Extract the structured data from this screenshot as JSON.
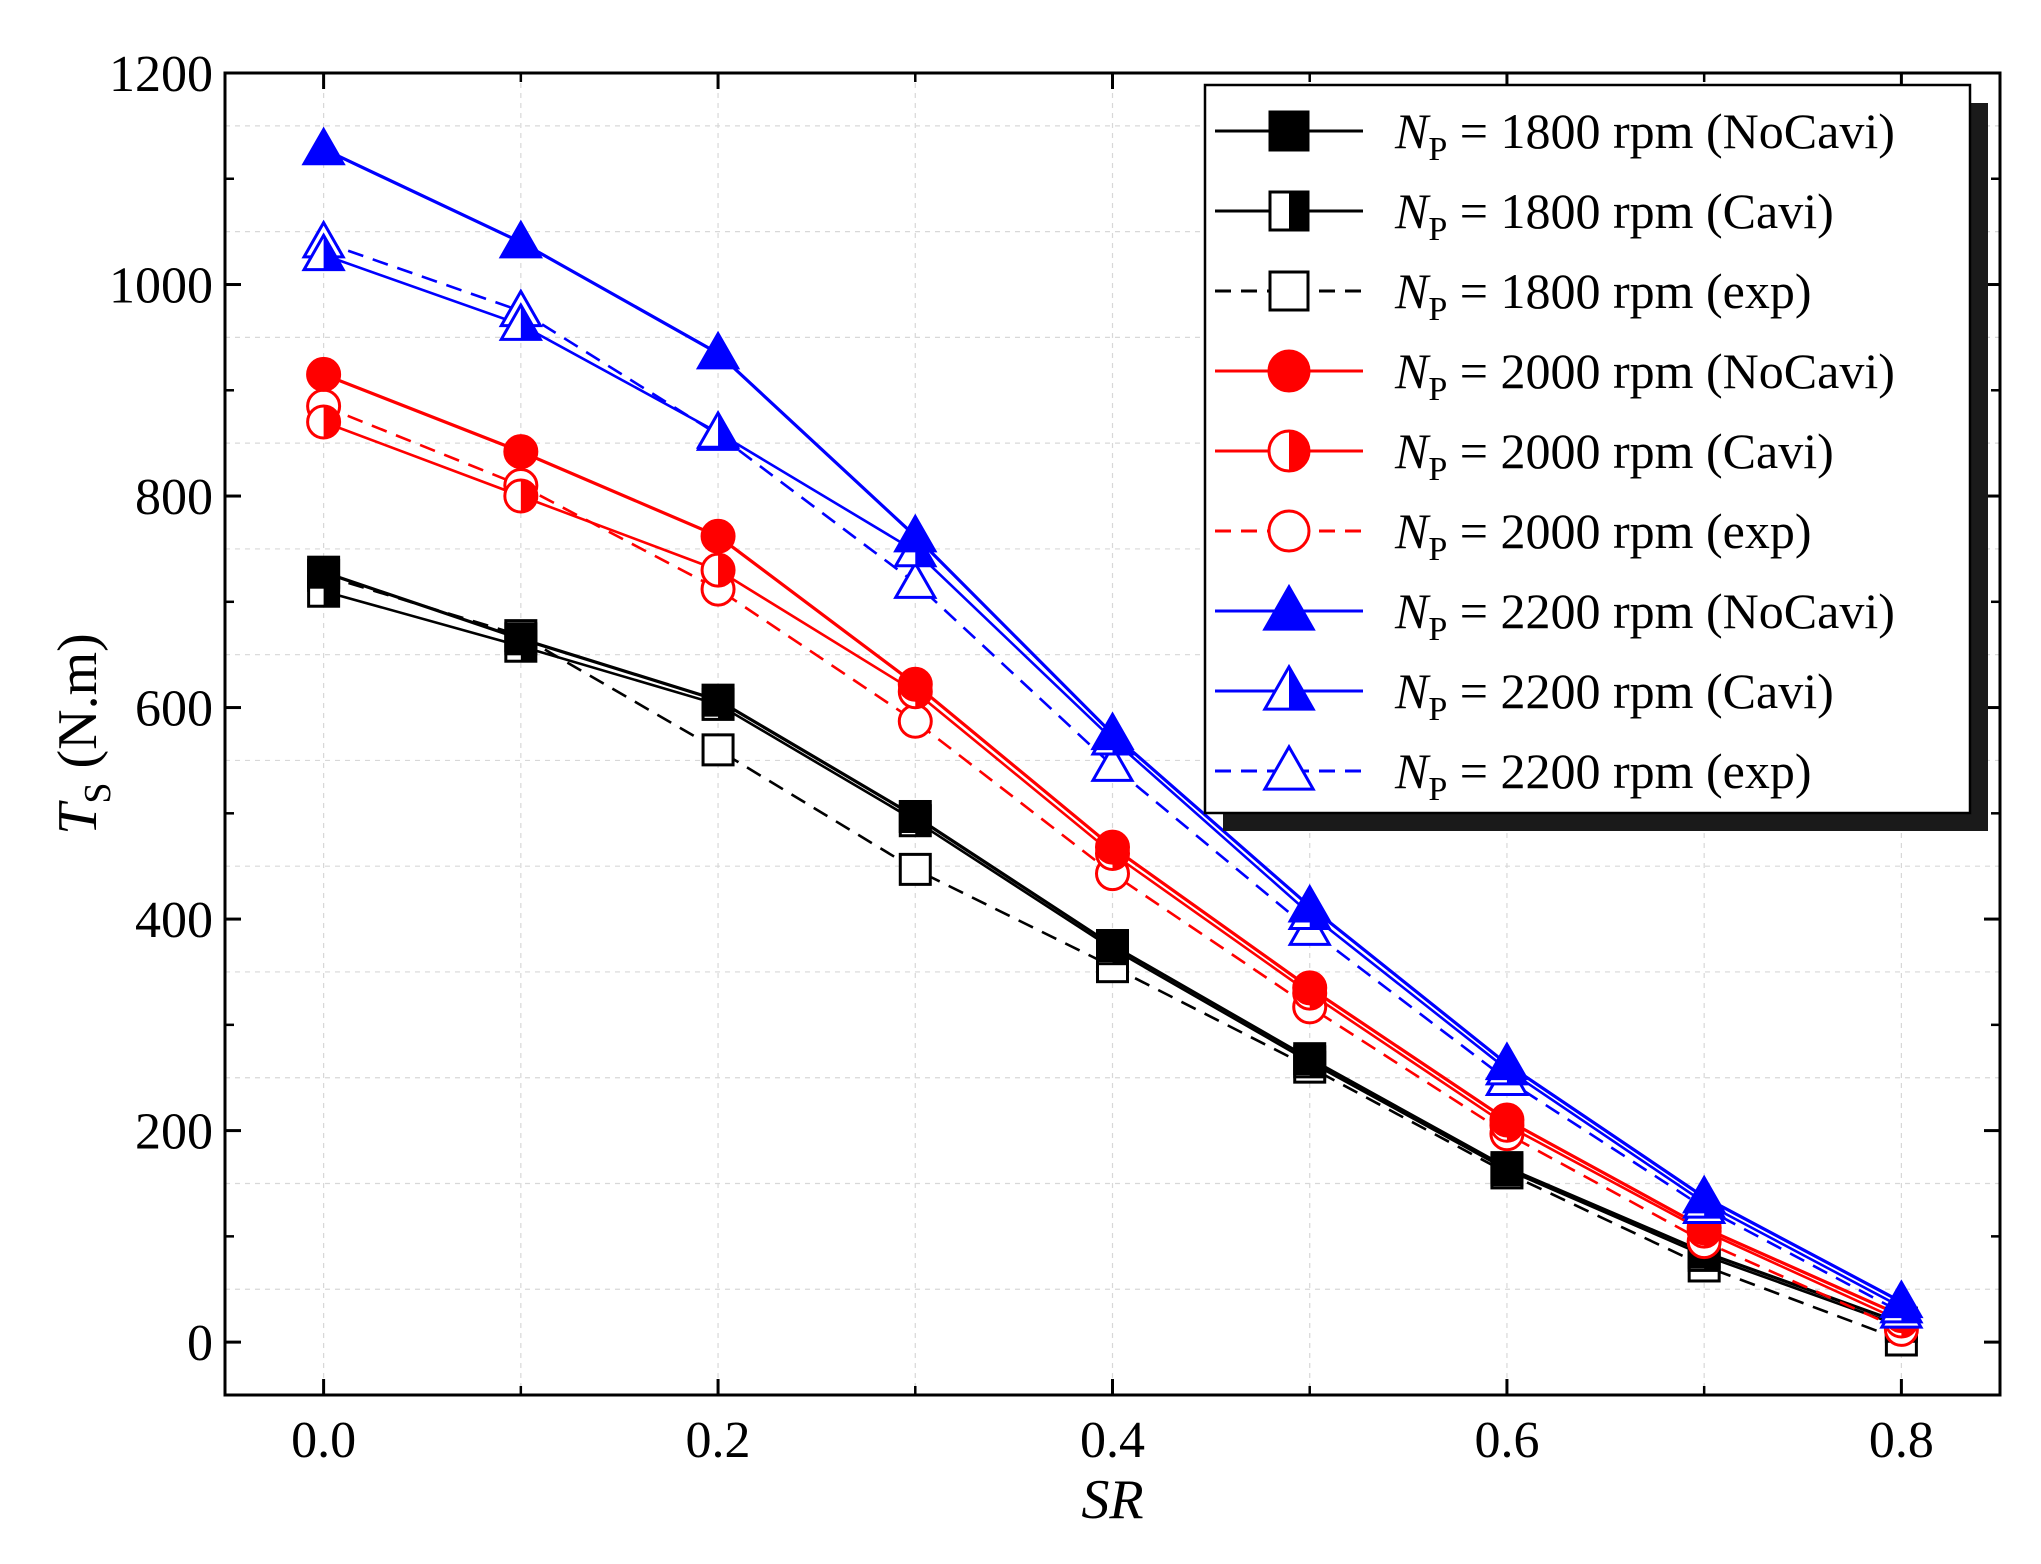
{
  "chart_data": {
    "type": "line",
    "title": "",
    "xlabel": "SR",
    "ylabel": {
      "symbol": "T",
      "subscript": "S",
      "unit": " (N.m)"
    },
    "xlim": [
      -0.05,
      0.85
    ],
    "ylim": [
      -50,
      1200
    ],
    "xticks": [
      0.0,
      0.2,
      0.4,
      0.6,
      0.8
    ],
    "xtick_labels": [
      "0.0",
      "0.2",
      "0.4",
      "0.6",
      "0.8"
    ],
    "yticks": [
      0,
      200,
      400,
      600,
      800,
      1000,
      1200
    ],
    "ytick_labels": [
      "0",
      "200",
      "400",
      "600",
      "800",
      "1000",
      "1200"
    ],
    "grid": true,
    "legend_position": "top-right",
    "series": [
      {
        "name": "NoCavi",
        "label": {
          "symbol": "N",
          "subscript": "P",
          "text": " = 1800 rpm (NoCavi)"
        },
        "color": "#000000",
        "dash": "solid",
        "marker": "square",
        "fill": "full",
        "x": [
          0.0,
          0.1,
          0.2,
          0.3,
          0.4,
          0.5,
          0.6,
          0.7,
          0.8
        ],
        "y": [
          728,
          665,
          607,
          497,
          375,
          268,
          165,
          85,
          18
        ]
      },
      {
        "name": "Cavi",
        "label": {
          "symbol": "N",
          "subscript": "P",
          "text": " = 1800 rpm (Cavi)"
        },
        "color": "#000000",
        "dash": "solid",
        "marker": "square",
        "fill": "right",
        "x": [
          0.0,
          0.1,
          0.2,
          0.3,
          0.4,
          0.5,
          0.6,
          0.7,
          0.8
        ],
        "y": [
          710,
          658,
          603,
          493,
          372,
          265,
          163,
          82,
          15
        ]
      },
      {
        "name": "exp",
        "label": {
          "symbol": "N",
          "subscript": "P",
          "text": " = 1800 rpm (exp)"
        },
        "color": "#000000",
        "dash": "dashed",
        "marker": "square",
        "fill": "none",
        "x": [
          0.0,
          0.1,
          0.2,
          0.3,
          0.4,
          0.5,
          0.6,
          0.7,
          0.8
        ],
        "y": [
          725,
          668,
          560,
          447,
          355,
          260,
          160,
          72,
          2
        ]
      },
      {
        "name": "NoCavi",
        "label": {
          "symbol": "N",
          "subscript": "P",
          "text": " = 2000 rpm (NoCavi)"
        },
        "color": "#ff0000",
        "dash": "solid",
        "marker": "circle",
        "fill": "full",
        "x": [
          0.0,
          0.1,
          0.2,
          0.3,
          0.4,
          0.5,
          0.6,
          0.7,
          0.8
        ],
        "y": [
          915,
          842,
          762,
          622,
          468,
          335,
          210,
          108,
          25
        ]
      },
      {
        "name": "Cavi",
        "label": {
          "symbol": "N",
          "subscript": "P",
          "text": " = 2000 rpm (Cavi)"
        },
        "color": "#ff0000",
        "dash": "solid",
        "marker": "circle",
        "fill": "right",
        "x": [
          0.0,
          0.1,
          0.2,
          0.3,
          0.4,
          0.5,
          0.6,
          0.7,
          0.8
        ],
        "y": [
          870,
          800,
          730,
          615,
          462,
          330,
          205,
          105,
          20
        ]
      },
      {
        "name": "exp",
        "label": {
          "symbol": "N",
          "subscript": "P",
          "text": " = 2000 rpm (exp)"
        },
        "color": "#ff0000",
        "dash": "dashed",
        "marker": "circle",
        "fill": "none",
        "x": [
          0.0,
          0.1,
          0.2,
          0.3,
          0.4,
          0.5,
          0.6,
          0.7,
          0.8
        ],
        "y": [
          885,
          810,
          712,
          587,
          443,
          317,
          197,
          95,
          12
        ]
      },
      {
        "name": "NoCavi",
        "label": {
          "symbol": "N",
          "subscript": "P",
          "text": " = 2200 rpm (NoCavi)"
        },
        "color": "#0000ff",
        "dash": "solid",
        "marker": "triangle",
        "fill": "full",
        "x": [
          0.0,
          0.1,
          0.2,
          0.3,
          0.4,
          0.5,
          0.6,
          0.7,
          0.8
        ],
        "y": [
          1128,
          1040,
          935,
          762,
          575,
          412,
          263,
          137,
          38
        ]
      },
      {
        "name": "Cavi",
        "label": {
          "symbol": "N",
          "subscript": "P",
          "text": " = 2200 rpm (Cavi)"
        },
        "color": "#0000ff",
        "dash": "solid",
        "marker": "triangle",
        "fill": "right",
        "x": [
          0.0,
          0.1,
          0.2,
          0.3,
          0.4,
          0.5,
          0.6,
          0.7,
          0.8
        ],
        "y": [
          1028,
          962,
          860,
          748,
          570,
          405,
          258,
          132,
          33
        ]
      },
      {
        "name": "exp",
        "label": {
          "symbol": "N",
          "subscript": "P",
          "text": " = 2200 rpm (exp)"
        },
        "color": "#0000ff",
        "dash": "dashed",
        "marker": "triangle",
        "fill": "none",
        "x": [
          0.0,
          0.1,
          0.2,
          0.3,
          0.4,
          0.5,
          0.6,
          0.7,
          0.8
        ],
        "y": [
          1040,
          975,
          858,
          718,
          545,
          390,
          248,
          127,
          28
        ]
      }
    ]
  }
}
